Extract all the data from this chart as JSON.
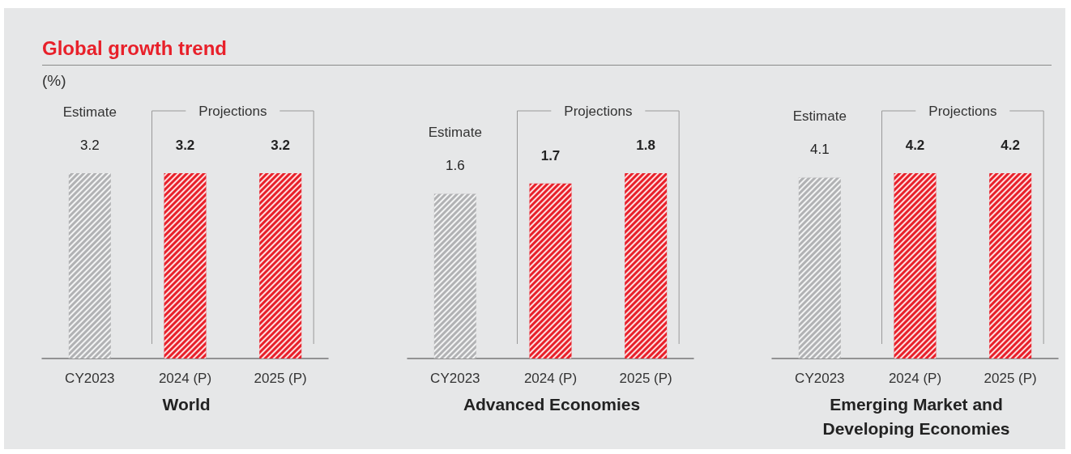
{
  "chart_data": [
    {
      "type": "bar",
      "title": "Global growth trend",
      "ylabel": "(%)",
      "xlabel": "World",
      "categories": [
        "CY2023",
        "2024 (P)",
        "2025 (P)"
      ],
      "values": [
        3.2,
        3.2,
        3.2
      ],
      "colors": [
        "#b1b2b4",
        "#e8202a",
        "#e8202a"
      ],
      "data_labels": true,
      "annotations": [
        "Estimate",
        "Projections"
      ]
    },
    {
      "type": "bar",
      "xlabel": "Advanced Economies",
      "categories": [
        "CY2023",
        "2024 (P)",
        "2025 (P)"
      ],
      "values": [
        1.6,
        1.7,
        1.8
      ],
      "colors": [
        "#b1b2b4",
        "#e8202a",
        "#e8202a"
      ],
      "data_labels": true,
      "annotations": [
        "Estimate",
        "Projections"
      ]
    },
    {
      "type": "bar",
      "xlabel": "Emerging Market and Developing Economies",
      "categories": [
        "CY2023",
        "2024 (P)",
        "2025 (P)"
      ],
      "values": [
        4.1,
        4.2,
        4.2
      ],
      "colors": [
        "#b1b2b4",
        "#e8202a",
        "#e8202a"
      ],
      "data_labels": true,
      "annotations": [
        "Estimate",
        "Projections"
      ]
    }
  ]
}
